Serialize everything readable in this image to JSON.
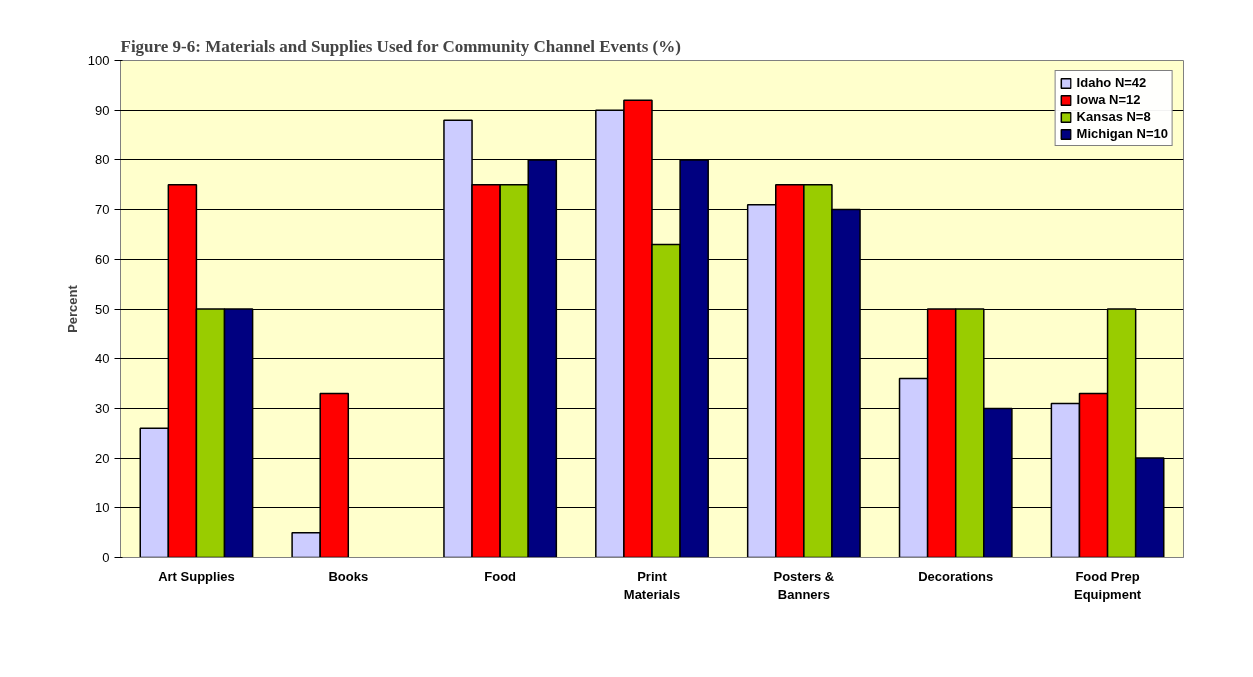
{
  "chart_data": {
    "type": "bar",
    "title": "Figure 9-6: Materials and Supplies Used for Community Channel Events (%)",
    "ylabel": "Percent",
    "categories": [
      "Art Supplies",
      "Books",
      "Food",
      "Print Materials",
      "Posters & Banners",
      "Decorations",
      "Food Prep Equipment"
    ],
    "series": [
      {
        "name": "Idaho N=42",
        "color": "#ccccff",
        "values": [
          26,
          5,
          88,
          90,
          71,
          36,
          31
        ]
      },
      {
        "name": "Iowa N=12",
        "color": "#ff0000",
        "values": [
          75,
          33,
          75,
          92,
          75,
          50,
          33
        ]
      },
      {
        "name": "Kansas N=8",
        "color": "#99cc00",
        "values": [
          50,
          null,
          75,
          63,
          75,
          50,
          50
        ]
      },
      {
        "name": "Michigan N=10",
        "color": "#000080",
        "values": [
          50,
          null,
          80,
          80,
          70,
          30,
          20
        ]
      }
    ],
    "ylim": [
      0,
      100
    ],
    "yticks": [
      0,
      10,
      20,
      30,
      40,
      50,
      60,
      70,
      80,
      90,
      100
    ],
    "grid": "y",
    "legend": "top right"
  }
}
